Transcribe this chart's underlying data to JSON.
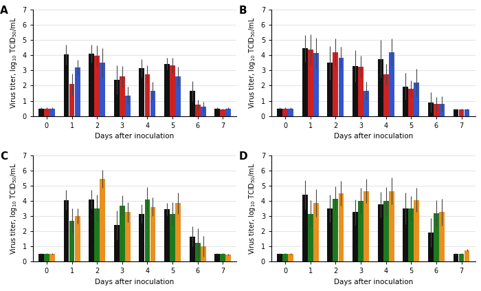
{
  "days": [
    0,
    1,
    2,
    3,
    4,
    5,
    6,
    7
  ],
  "panels": {
    "A": {
      "label": "A",
      "colors": [
        "#111111",
        "#cc2222",
        "#3355cc"
      ],
      "bars": [
        [
          0.5,
          4.05,
          4.1,
          2.4,
          3.15,
          3.45,
          1.65,
          0.5
        ],
        [
          0.5,
          2.1,
          3.95,
          2.6,
          2.75,
          3.35,
          0.75,
          0.45
        ],
        [
          0.5,
          3.2,
          3.5,
          1.35,
          1.65,
          2.6,
          0.6,
          0.5
        ]
      ],
      "errors": [
        [
          0.05,
          0.65,
          0.6,
          0.95,
          0.6,
          0.4,
          0.65,
          0.05
        ],
        [
          0.05,
          0.7,
          0.7,
          0.7,
          0.6,
          0.5,
          0.3,
          0.05
        ],
        [
          0.05,
          0.5,
          0.95,
          0.6,
          0.6,
          0.65,
          0.35,
          0.05
        ]
      ]
    },
    "B": {
      "label": "B",
      "colors": [
        "#111111",
        "#cc2222",
        "#3355cc"
      ],
      "bars": [
        [
          0.5,
          4.45,
          3.5,
          3.3,
          3.75,
          1.95,
          0.9,
          0.45
        ],
        [
          0.5,
          4.4,
          4.2,
          3.25,
          2.75,
          1.8,
          0.8,
          0.45
        ],
        [
          0.5,
          4.15,
          3.85,
          1.65,
          4.2,
          2.2,
          0.8,
          0.45
        ]
      ],
      "errors": [
        [
          0.05,
          0.9,
          1.1,
          1.05,
          1.25,
          0.9,
          0.65,
          0.05
        ],
        [
          0.05,
          1.0,
          0.9,
          0.7,
          0.7,
          0.55,
          0.45,
          0.05
        ],
        [
          0.05,
          1.0,
          0.7,
          0.6,
          0.9,
          0.9,
          0.5,
          0.05
        ]
      ]
    },
    "C": {
      "label": "C",
      "colors": [
        "#111111",
        "#1e7a1e",
        "#e89020"
      ],
      "bars": [
        [
          0.5,
          4.05,
          4.1,
          2.4,
          3.15,
          3.45,
          1.65,
          0.5
        ],
        [
          0.5,
          2.7,
          3.5,
          3.7,
          4.1,
          3.15,
          1.25,
          0.5
        ],
        [
          0.5,
          3.0,
          5.45,
          3.25,
          3.6,
          3.85,
          1.0,
          0.45
        ]
      ],
      "errors": [
        [
          0.05,
          0.65,
          0.6,
          0.95,
          0.6,
          0.4,
          0.65,
          0.05
        ],
        [
          0.05,
          0.8,
          0.9,
          0.65,
          0.8,
          0.75,
          0.95,
          0.05
        ],
        [
          0.05,
          0.5,
          0.6,
          0.65,
          0.6,
          0.7,
          0.7,
          0.05
        ]
      ]
    },
    "D": {
      "label": "D",
      "colors": [
        "#111111",
        "#1e7a1e",
        "#e89020"
      ],
      "bars": [
        [
          0.5,
          4.4,
          3.5,
          3.25,
          3.75,
          3.5,
          1.9,
          0.5
        ],
        [
          0.5,
          3.15,
          4.15,
          4.0,
          4.0,
          3.5,
          3.2,
          0.5
        ],
        [
          0.5,
          3.85,
          4.5,
          4.65,
          4.65,
          4.05,
          3.25,
          0.75
        ]
      ],
      "errors": [
        [
          0.05,
          0.95,
          0.9,
          0.85,
          0.85,
          1.05,
          0.95,
          0.05
        ],
        [
          0.05,
          0.9,
          0.8,
          0.85,
          0.9,
          0.8,
          0.85,
          0.05
        ],
        [
          0.05,
          0.9,
          0.8,
          0.8,
          0.9,
          0.8,
          0.9,
          0.05
        ]
      ]
    }
  },
  "ylabel": "Virus titer, log$_{10}$ TCID$_{50}$/mL",
  "xlabel": "Days after inoculation",
  "ylim": [
    0,
    7
  ],
  "yticks": [
    0,
    1,
    2,
    3,
    4,
    5,
    6,
    7
  ],
  "bar_width": 0.22,
  "background_color": "#ffffff",
  "axes_bg": "#f5f5f5"
}
